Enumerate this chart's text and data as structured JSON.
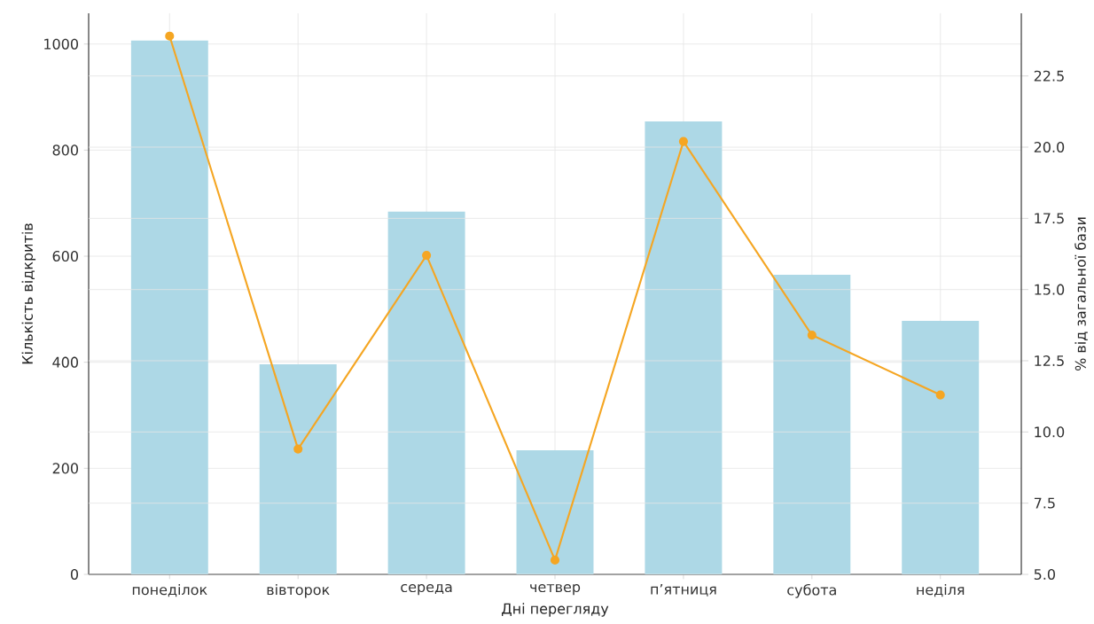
{
  "chart_data": {
    "type": "bar",
    "xlabel": "Дні перегляду",
    "ylabel": "Кількість відкритів",
    "y2label": "% від загальної бази",
    "categories": [
      "понеділок",
      "вівторок",
      "середа",
      "четвер",
      "п’ятниця",
      "субота",
      "неділя"
    ],
    "series": [
      {
        "color": "#add8e6",
        "values": [
          1007,
          396,
          684,
          234,
          854,
          565,
          478
        ]
      },
      {
        "type": "line",
        "axis": "y2",
        "color": "#f5a623",
        "values": [
          23.9,
          9.4,
          16.2,
          5.5,
          20.2,
          13.4,
          11.3
        ]
      }
    ],
    "ylim": [
      0,
      1058
    ],
    "yticks": [
      0,
      200,
      400,
      600,
      800,
      1000
    ],
    "y2lim": [
      5,
      24.7
    ],
    "y2ticks": [
      {
        "value": 5,
        "label": "5.0"
      },
      {
        "value": 7.5,
        "label": "7.5"
      },
      {
        "value": 10,
        "label": "10.0"
      },
      {
        "value": 12.5,
        "label": "12.5"
      },
      {
        "value": 15,
        "label": "15.0"
      },
      {
        "value": 17.5,
        "label": "17.5"
      },
      {
        "value": 20,
        "label": "20.0"
      },
      {
        "value": 22.5,
        "label": "22.5"
      }
    ],
    "grid": true,
    "marker": "circle",
    "line_style": "solid"
  }
}
